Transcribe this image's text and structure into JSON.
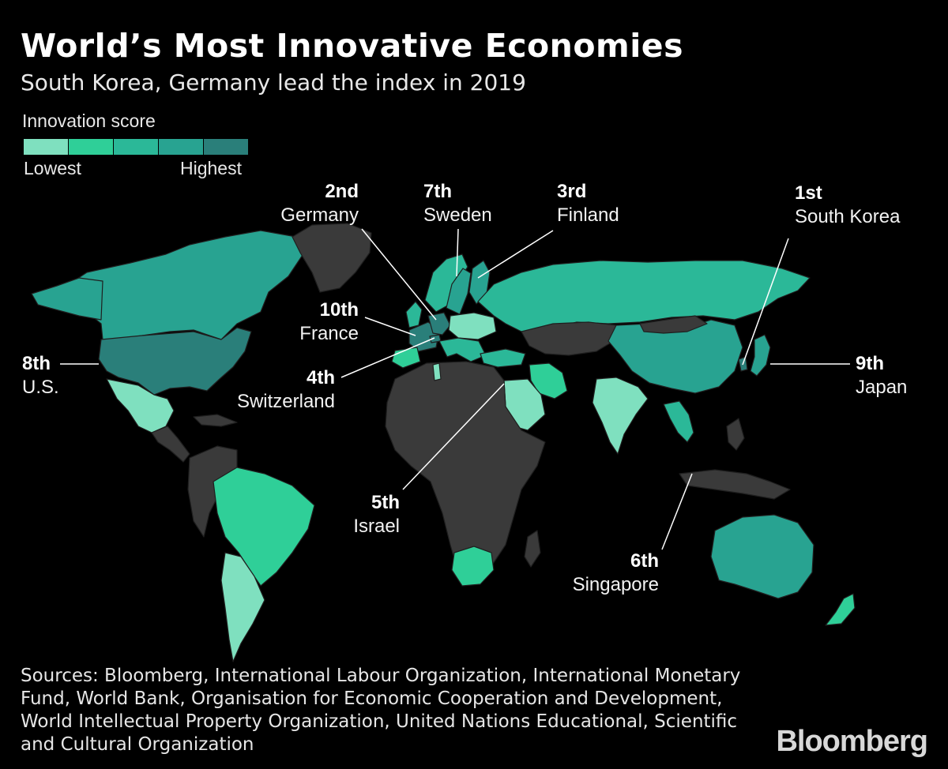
{
  "title": "World’s Most Innovative Economies",
  "subtitle": "South Korea, Germany lead the index in 2019",
  "legend": {
    "title": "Innovation score",
    "low_label": "Lowest",
    "high_label": "Highest",
    "colors": [
      "#7fe0bf",
      "#2fcf98",
      "#2bb898",
      "#28a391",
      "#2a7f7a"
    ]
  },
  "colors": {
    "background": "#000000",
    "no_data_land": "#3a3a3a",
    "borders": "#1f1f1f"
  },
  "rankings": [
    {
      "rank": "1st",
      "country": "South Korea"
    },
    {
      "rank": "2nd",
      "country": "Germany"
    },
    {
      "rank": "3rd",
      "country": "Finland"
    },
    {
      "rank": "4th",
      "country": "Switzerland"
    },
    {
      "rank": "5th",
      "country": "Israel"
    },
    {
      "rank": "6th",
      "country": "Singapore"
    },
    {
      "rank": "7th",
      "country": "Sweden"
    },
    {
      "rank": "8th",
      "country": "U.S."
    },
    {
      "rank": "9th",
      "country": "Japan"
    },
    {
      "rank": "10th",
      "country": "France"
    }
  ],
  "sources": "Sources: Bloomberg, International Labour Organization, International Monetary Fund, World Bank, Organisation for Economic Cooperation and Development, World Intellectual Property Organization, United Nations Educational, Scientific and Cultural Organization",
  "brand": "Bloomberg"
}
